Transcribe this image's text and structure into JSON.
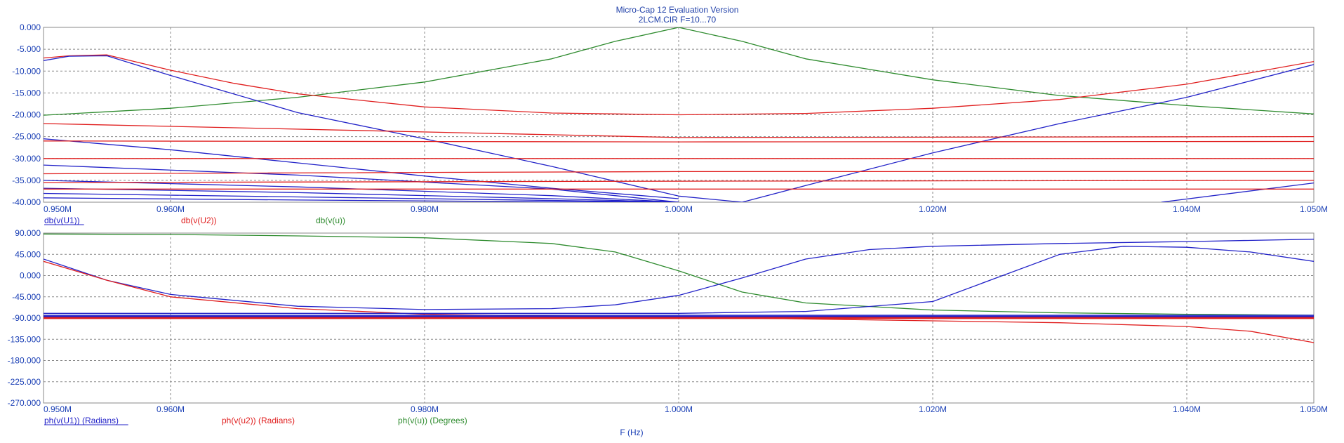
{
  "window": {
    "title_line1": "Micro-Cap 12 Evaluation Version",
    "title_line2": "2LCM.CIR F=10...70"
  },
  "colors": {
    "blue": "#2222c8",
    "red": "#e01e1e",
    "green": "#2e8b2e",
    "axis_text": "#1a3fb5",
    "grid": "#8a8a8a",
    "frame": "#8a8a8a"
  },
  "chart_data": [
    {
      "type": "line",
      "panel": "magnitude",
      "xlim": [
        0.95,
        1.05
      ],
      "ylim": [
        -40,
        0
      ],
      "grid": true,
      "x_ticks": [
        0.95,
        0.96,
        0.98,
        1.0,
        1.02,
        1.04,
        1.05
      ],
      "x_tick_labels": [
        "0.950M",
        "0.960M",
        "0.980M",
        "1.000M",
        "1.020M",
        "1.040M",
        "1.050M"
      ],
      "y_ticks": [
        0,
        -5,
        -10,
        -15,
        -20,
        -25,
        -30,
        -35,
        -40
      ],
      "y_tick_labels": [
        "0.000",
        "-5.000",
        "-10.000",
        "-15.000",
        "-20.000",
        "-25.000",
        "-30.000",
        "-35.000",
        "-40.000"
      ],
      "legend": [
        {
          "label": "db(v(U1))",
          "color": "blue"
        },
        {
          "label": "db(v(U2))",
          "color": "red"
        },
        {
          "label": "db(v(u))",
          "color": "green"
        }
      ],
      "series": [
        {
          "color": "green",
          "x": [
            0.95,
            0.96,
            0.97,
            0.98,
            0.99,
            0.995,
            1.0,
            1.005,
            1.01,
            1.02,
            1.03,
            1.04,
            1.05
          ],
          "y": [
            -20.1,
            -18.5,
            -16.0,
            -12.5,
            -7.2,
            -3.2,
            0.0,
            -3.2,
            -7.2,
            -12.0,
            -15.6,
            -17.9,
            -19.8
          ]
        },
        {
          "color": "red",
          "x": [
            0.95,
            0.952,
            0.955,
            0.96,
            0.965,
            0.97,
            0.98,
            0.99,
            1.0,
            1.01,
            1.02,
            1.03,
            1.04,
            1.05
          ],
          "y": [
            -7.0,
            -6.5,
            -6.3,
            -9.8,
            -12.8,
            -15.2,
            -18.2,
            -19.6,
            -20.0,
            -19.7,
            -18.5,
            -16.5,
            -13.0,
            -7.8
          ]
        },
        {
          "color": "blue",
          "x": [
            0.95,
            0.952,
            0.955,
            0.96,
            0.97,
            0.98,
            0.99,
            1.0,
            1.005,
            1.01,
            1.02,
            1.03,
            1.04,
            1.05
          ],
          "y": [
            -7.6,
            -6.6,
            -6.5,
            -11.0,
            -19.5,
            -25.5,
            -31.8,
            -38.6,
            -40.0,
            -36.2,
            -28.7,
            -22.0,
            -16.0,
            -8.5
          ]
        },
        {
          "color": "blue",
          "x": [
            0.95,
            0.96,
            0.97,
            0.98,
            0.99,
            1.0
          ],
          "y": [
            -25.5,
            -28.0,
            -31.0,
            -34.0,
            -36.8,
            -39.2
          ]
        },
        {
          "color": "blue",
          "x": [
            0.95,
            0.97,
            0.99,
            1.0
          ],
          "y": [
            -31.5,
            -33.8,
            -37.0,
            -40.0
          ]
        },
        {
          "color": "blue",
          "x": [
            0.95,
            0.97,
            0.99,
            1.0
          ],
          "y": [
            -35.0,
            -36.5,
            -38.5,
            -40.0
          ]
        },
        {
          "color": "blue",
          "x": [
            0.95,
            0.97,
            0.99,
            1.0
          ],
          "y": [
            -36.8,
            -37.8,
            -39.2,
            -40.0
          ]
        },
        {
          "color": "blue",
          "x": [
            0.95,
            0.97,
            0.99,
            1.0
          ],
          "y": [
            -38.0,
            -38.8,
            -39.6,
            -40.0
          ]
        },
        {
          "color": "blue",
          "x": [
            0.95,
            0.97,
            0.99,
            1.0
          ],
          "y": [
            -39.0,
            -39.5,
            -39.9,
            -40.0
          ]
        },
        {
          "color": "blue",
          "x": [
            1.038,
            1.05
          ],
          "y": [
            -40.0,
            -35.6
          ]
        },
        {
          "color": "red",
          "x": [
            0.95,
            1.0,
            1.05
          ],
          "y": [
            -22.0,
            -25.2,
            -25.0
          ]
        },
        {
          "color": "red",
          "x": [
            0.95,
            1.0,
            1.05
          ],
          "y": [
            -26.0,
            -26.2,
            -26.1
          ]
        },
        {
          "color": "red",
          "x": [
            0.95,
            1.0,
            1.05
          ],
          "y": [
            -30.0,
            -30.0,
            -30.0
          ]
        },
        {
          "color": "red",
          "x": [
            0.95,
            1.0,
            1.05
          ],
          "y": [
            -33.5,
            -33.0,
            -33.0
          ]
        },
        {
          "color": "red",
          "x": [
            0.95,
            1.0,
            1.05
          ],
          "y": [
            -35.5,
            -35.2,
            -35.0
          ]
        },
        {
          "color": "red",
          "x": [
            0.95,
            1.0,
            1.05
          ],
          "y": [
            -37.0,
            -37.0,
            -37.0
          ]
        }
      ]
    },
    {
      "type": "line",
      "panel": "phase",
      "xlim": [
        0.95,
        1.05
      ],
      "ylim": [
        -270,
        90
      ],
      "xlabel": "F (Hz)",
      "grid": true,
      "x_ticks": [
        0.95,
        0.96,
        0.98,
        1.0,
        1.02,
        1.04,
        1.05
      ],
      "x_tick_labels": [
        "0.950M",
        "0.960M",
        "0.980M",
        "1.000M",
        "1.020M",
        "1.040M",
        "1.050M"
      ],
      "y_ticks": [
        90,
        45,
        0,
        -45,
        -90,
        -135,
        -180,
        -225,
        -270
      ],
      "y_tick_labels": [
        "90.000",
        "45.000",
        "0.000",
        "-45.000",
        "-90.000",
        "-135.000",
        "-180.000",
        "-225.000",
        "-270.000"
      ],
      "legend": [
        {
          "label": "ph(v(U1)) (Radians)",
          "color": "blue"
        },
        {
          "label": "ph(v(u2)) (Radians)",
          "color": "red"
        },
        {
          "label": "ph(v(u)) (Degrees)",
          "color": "green"
        }
      ],
      "series": [
        {
          "color": "green",
          "x": [
            0.95,
            0.96,
            0.97,
            0.98,
            0.99,
            0.995,
            1.0,
            1.005,
            1.01,
            1.02,
            1.03,
            1.04,
            1.05
          ],
          "y": [
            88,
            87,
            84,
            80,
            68,
            50,
            10,
            -35,
            -58,
            -73,
            -79,
            -82,
            -84
          ]
        },
        {
          "color": "blue",
          "x": [
            0.95,
            0.955,
            0.96,
            0.97,
            0.98,
            0.99,
            0.995,
            1.0,
            1.005,
            1.01,
            1.015,
            1.02,
            1.03,
            1.04,
            1.05
          ],
          "y": [
            35,
            -10,
            -40,
            -65,
            -72,
            -70,
            -62,
            -42,
            -5,
            35,
            55,
            62,
            68,
            72,
            77
          ]
        },
        {
          "color": "red",
          "x": [
            0.95,
            0.955,
            0.96,
            0.97,
            0.98,
            0.99,
            1.0,
            1.01,
            1.02,
            1.03,
            1.04,
            1.045,
            1.05
          ],
          "y": [
            30,
            -10,
            -45,
            -70,
            -82,
            -86,
            -88,
            -92,
            -96,
            -100,
            -108,
            -118,
            -142
          ]
        },
        {
          "color": "blue",
          "x": [
            0.95,
            0.97,
            0.99,
            1.0,
            1.01,
            1.02,
            1.025,
            1.03,
            1.035,
            1.04,
            1.045,
            1.05
          ],
          "y": [
            -80,
            -80,
            -80,
            -80,
            -76,
            -55,
            -5,
            45,
            62,
            60,
            50,
            30
          ]
        },
        {
          "color": "blue",
          "x": [
            0.95,
            1.0,
            1.05
          ],
          "y": [
            -84,
            -84,
            -84
          ]
        },
        {
          "color": "blue",
          "x": [
            0.95,
            1.0,
            1.05
          ],
          "y": [
            -86,
            -86,
            -86
          ]
        },
        {
          "color": "blue",
          "x": [
            0.95,
            1.0,
            1.05
          ],
          "y": [
            -88,
            -88,
            -88
          ]
        },
        {
          "color": "red",
          "x": [
            0.95,
            1.0,
            1.05
          ],
          "y": [
            -90,
            -90,
            -90
          ]
        },
        {
          "color": "red",
          "x": [
            0.95,
            1.0,
            1.05
          ],
          "y": [
            -89,
            -89,
            -89
          ]
        },
        {
          "color": "red",
          "x": [
            0.95,
            1.0,
            1.05
          ],
          "y": [
            -91,
            -91,
            -91
          ]
        }
      ]
    }
  ]
}
